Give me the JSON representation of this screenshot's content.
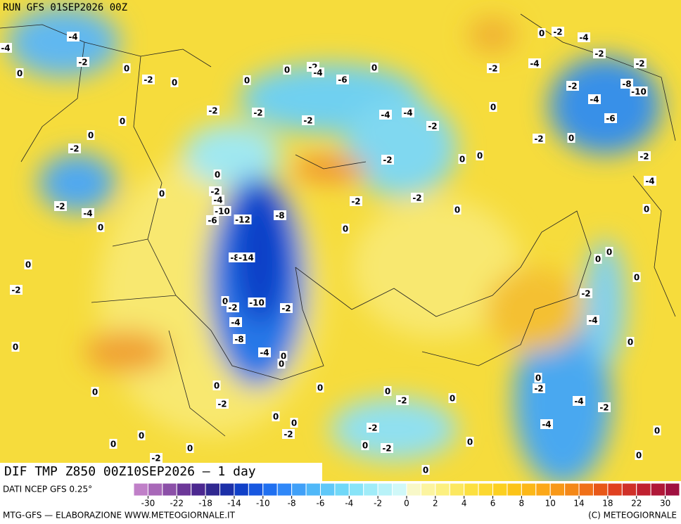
{
  "header": {
    "run": "RUN GFS 01SEP2026 00Z"
  },
  "map": {
    "title": "DIF TMP Z850 00Z10SEP2026 — 1 day",
    "labels": [
      -4,
      -2,
      0,
      0,
      -2,
      0,
      -4,
      0,
      0,
      -2,
      -4,
      -6,
      0,
      -2,
      -2,
      -2,
      -4,
      -4,
      -2,
      -2,
      -4,
      0,
      -2,
      -4,
      -2,
      -2,
      -2,
      -8,
      -10,
      -4,
      -6,
      0,
      -2,
      0,
      -2,
      -4,
      0,
      0,
      0,
      -2,
      0,
      -2,
      0,
      0,
      0,
      -2,
      -4,
      -10,
      -6,
      -12,
      -8,
      -2,
      -2,
      0,
      0,
      -2,
      -4,
      0,
      -8,
      -14,
      0,
      -2,
      -10,
      -2,
      0,
      -2,
      -4,
      -8,
      -4,
      0,
      0,
      0,
      0,
      0,
      0,
      0,
      -2,
      0,
      0,
      -2,
      -4,
      -2,
      -4,
      0,
      0,
      0,
      -2,
      -4,
      0,
      -2,
      0,
      0,
      -2,
      -2,
      0,
      -2,
      0,
      0,
      0,
      -2,
      0,
      0,
      0,
      0
    ]
  },
  "colorbar": {
    "source": "DATI NCEP GFS 0.25°",
    "colors": [
      "#c080c8",
      "#a868b8",
      "#8c50a8",
      "#6c3898",
      "#4c2890",
      "#302890",
      "#1c30a8",
      "#1040c8",
      "#1858e0",
      "#2070f0",
      "#3088f8",
      "#40a0f8",
      "#50b8f8",
      "#60c8f8",
      "#70d8f8",
      "#88e4f8",
      "#a0ecf8",
      "#b8f2f8",
      "#d0f8f8",
      "#f8f8c8",
      "#fcf4a0",
      "#fcf080",
      "#fce860",
      "#fce040",
      "#fcd830",
      "#fcd020",
      "#fcc418",
      "#fcb818",
      "#fca818",
      "#f89818",
      "#f48818",
      "#f07018",
      "#e85818",
      "#e04020",
      "#d03028",
      "#c02030",
      "#b01838",
      "#a01040"
    ],
    "ticks": [
      -30,
      -22,
      -18,
      -14,
      -10,
      -8,
      -6,
      -4,
      -2,
      0,
      2,
      4,
      6,
      8,
      10,
      14,
      18,
      22,
      30
    ]
  },
  "footer": {
    "left": "MTG-GFS — ELABORAZIONE WWW.METEOGIORNALE.IT",
    "right": "(C) METEOGIORNALE"
  }
}
